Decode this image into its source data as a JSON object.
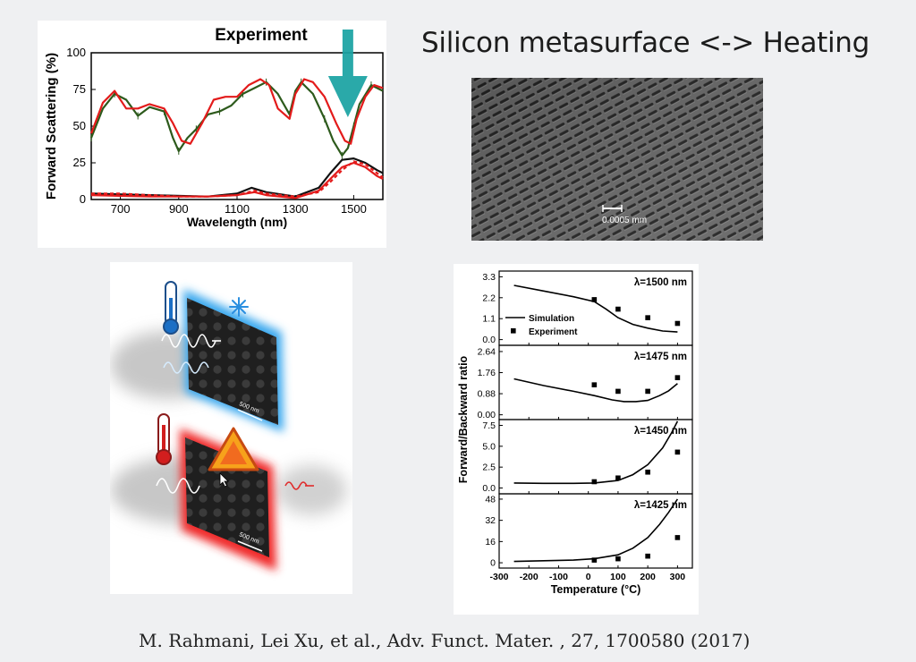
{
  "slide": {
    "title": "Silicon metasurface <-> Heating",
    "citation": "M. Rahmani, Lei Xu, et al., Adv. Funct. Mater. , 27, 1700580 (2017)"
  },
  "colors": {
    "background": "#eff0f2",
    "arrow": "#1aa3a3",
    "red_curve": "#e31b1b",
    "green_curve": "#2d5a1c",
    "black_curve": "#111111",
    "cold_glow": "#3aa8ee",
    "hot_glow": "#f02a2a"
  },
  "sem_image": {
    "scale_label": "0.0005 mm"
  },
  "schematic": {
    "cold_scale_label": "500 nm",
    "hot_scale_label": "500 nm",
    "icons": [
      "thermometer-cold-icon",
      "snowflake-icon",
      "thermometer-hot-icon",
      "warning-triangle-icon",
      "wave-icon",
      "cursor-icon"
    ]
  },
  "chart_data": [
    {
      "type": "line",
      "title": "Experiment",
      "xlabel": "Wavelength (nm)",
      "ylabel": "Forward Scattering (%)",
      "xlim": [
        600,
        1600
      ],
      "ylim": [
        0,
        100
      ],
      "xticks": [
        700,
        900,
        1100,
        1300,
        1500
      ],
      "yticks": [
        0,
        25,
        50,
        75,
        100
      ],
      "series": [
        {
          "color": "#2d5a1c",
          "style": "solid-with-errorbars",
          "x": [
            600,
            640,
            680,
            720,
            760,
            800,
            850,
            880,
            900,
            930,
            960,
            1000,
            1040,
            1080,
            1120,
            1160,
            1200,
            1240,
            1280,
            1300,
            1320,
            1360,
            1400,
            1430,
            1460,
            1480,
            1500,
            1520,
            1560,
            1600
          ],
          "y": [
            42,
            62,
            72,
            68,
            57,
            63,
            60,
            42,
            33,
            42,
            48,
            58,
            60,
            64,
            72,
            76,
            80,
            72,
            58,
            74,
            80,
            72,
            55,
            40,
            30,
            35,
            50,
            65,
            78,
            74
          ]
        },
        {
          "color": "#e31b1b",
          "style": "solid",
          "x": [
            600,
            640,
            680,
            720,
            760,
            800,
            850,
            880,
            910,
            940,
            980,
            1020,
            1060,
            1100,
            1140,
            1180,
            1210,
            1240,
            1280,
            1300,
            1330,
            1360,
            1400,
            1440,
            1470,
            1490,
            1510,
            1540,
            1570,
            1600
          ],
          "y": [
            45,
            66,
            74,
            62,
            62,
            65,
            62,
            52,
            40,
            38,
            52,
            68,
            70,
            70,
            78,
            82,
            78,
            62,
            55,
            72,
            82,
            80,
            70,
            52,
            40,
            38,
            55,
            70,
            78,
            76
          ]
        },
        {
          "color": "#111111",
          "style": "solid",
          "x": [
            600,
            800,
            1000,
            1100,
            1150,
            1200,
            1300,
            1380,
            1420,
            1460,
            1500,
            1540,
            1580,
            1600
          ],
          "y": [
            4,
            3,
            2,
            4,
            8,
            5,
            2,
            8,
            18,
            27,
            28,
            25,
            20,
            18
          ]
        },
        {
          "color": "#e31b1b",
          "style": "dashed",
          "x": [
            600,
            700,
            800,
            900,
            1000,
            1100,
            1160,
            1200,
            1300,
            1380,
            1420,
            1460,
            1500,
            1540,
            1580,
            1600
          ],
          "y": [
            4,
            4,
            3,
            2,
            2,
            3,
            6,
            4,
            2,
            5,
            12,
            20,
            26,
            24,
            18,
            15
          ]
        },
        {
          "color": "#e31b1b",
          "style": "solid",
          "x": [
            600,
            800,
            1000,
            1100,
            1160,
            1200,
            1300,
            1380,
            1420,
            1460,
            1500,
            1540,
            1580,
            1600
          ],
          "y": [
            3,
            2,
            2,
            3,
            5,
            3,
            1,
            6,
            14,
            22,
            25,
            22,
            16,
            14
          ]
        }
      ],
      "annotation": "arrow pointing down at ~1480 nm"
    },
    {
      "type": "line",
      "xlabel": "Temperature (°C)",
      "ylabel": "Forward/Backward ratio",
      "xlim": [
        -300,
        350
      ],
      "xticks": [
        -300,
        -200,
        -100,
        0,
        100,
        200,
        300
      ],
      "legend": {
        "placement": "left",
        "entries": [
          {
            "label": "Simulation",
            "marker": "line"
          },
          {
            "label": "Experiment",
            "marker": "square"
          }
        ]
      },
      "panels": [
        {
          "label": "λ=1500 nm",
          "ylim": [
            -0.3,
            3.6
          ],
          "yticks": [
            "0.0",
            "1.1",
            "2.2",
            "3.3"
          ],
          "simulation": {
            "x": [
              -250,
              -150,
              -50,
              20,
              60,
              100,
              150,
              200,
              250,
              300
            ],
            "y": [
              2.85,
              2.55,
              2.25,
              2.0,
              1.6,
              1.15,
              0.8,
              0.6,
              0.45,
              0.4
            ]
          },
          "experiment": {
            "x": [
              20,
              100,
              200,
              300
            ],
            "y": [
              2.1,
              1.6,
              1.15,
              0.85
            ]
          }
        },
        {
          "label": "λ=1475 nm",
          "ylim": [
            -0.2,
            2.9
          ],
          "yticks": [
            "0.00",
            "0.88",
            "1.76",
            "2.64"
          ],
          "simulation": {
            "x": [
              -250,
              -150,
              -50,
              20,
              80,
              120,
              160,
              200,
              240,
              270,
              300
            ],
            "y": [
              1.5,
              1.22,
              0.98,
              0.8,
              0.62,
              0.55,
              0.55,
              0.6,
              0.8,
              1.0,
              1.3
            ]
          },
          "experiment": {
            "x": [
              20,
              100,
              200,
              300
            ],
            "y": [
              1.25,
              0.98,
              0.98,
              1.55
            ]
          }
        },
        {
          "label": "λ=1450 nm",
          "ylim": [
            -0.7,
            8.2
          ],
          "yticks": [
            "0.0",
            "2.5",
            "5.0",
            "7.5"
          ],
          "simulation": {
            "x": [
              -250,
              -150,
              -50,
              20,
              100,
              150,
              200,
              250,
              280,
              300
            ],
            "y": [
              0.6,
              0.55,
              0.55,
              0.6,
              0.9,
              1.6,
              2.8,
              4.8,
              6.6,
              8.0
            ]
          },
          "experiment": {
            "x": [
              20,
              100,
              200,
              300
            ],
            "y": [
              0.75,
              1.2,
              1.9,
              4.3
            ]
          }
        },
        {
          "label": "λ=1425 nm",
          "ylim": [
            -4,
            52
          ],
          "yticks": [
            "0",
            "16",
            "32",
            "48"
          ],
          "simulation": {
            "x": [
              -250,
              -150,
              -50,
              20,
              100,
              150,
              200,
              240,
              270,
              300
            ],
            "y": [
              1,
              1.5,
              2,
              3,
              6,
              11,
              19,
              29,
              38,
              48
            ]
          },
          "experiment": {
            "x": [
              20,
              100,
              200,
              300
            ],
            "y": [
              2,
              3,
              5,
              19
            ]
          }
        }
      ]
    }
  ]
}
